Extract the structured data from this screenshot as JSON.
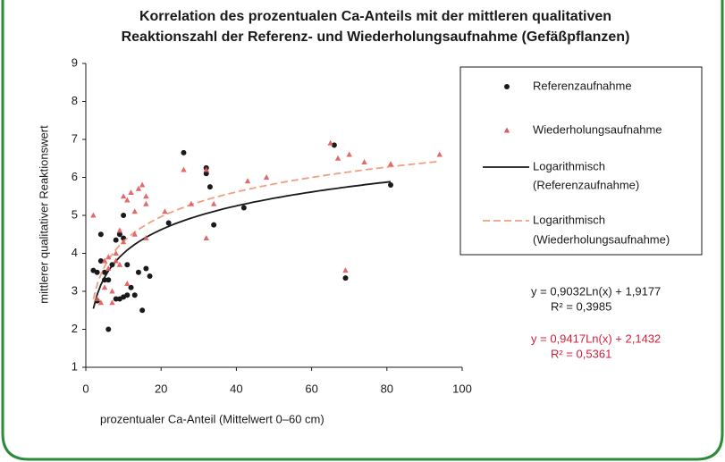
{
  "chart_data": {
    "type": "scatter",
    "title": [
      "Korrelation des prozentualen Ca-Anteils mit der mittleren qualitativen",
      "Reaktionszahl der Referenz- und Wiederholungsaufnahme (Gefäßpflanzen)"
    ],
    "xlabel": "prozentualer Ca-Anteil (Mittelwert 0–60 cm)",
    "ylabel": "mittlerer qualitativer Reaktionswert",
    "xlim": [
      0,
      100
    ],
    "xticks": [
      0,
      20,
      40,
      60,
      80,
      100
    ],
    "ylim": [
      1,
      9
    ],
    "yticks": [
      1,
      2,
      3,
      4,
      5,
      6,
      7,
      8,
      9
    ],
    "series": [
      {
        "name": "Referenzaufnahme",
        "color": "#1a1a1a",
        "x": [
          26,
          32,
          32,
          33,
          34,
          42,
          22,
          17,
          15,
          14,
          10,
          10,
          9,
          8,
          11,
          11,
          10,
          9,
          8,
          6,
          4,
          3,
          2,
          3,
          5,
          5,
          6,
          7,
          12,
          13,
          66,
          69,
          81,
          16,
          4
        ],
        "values": [
          6.65,
          6.25,
          6.1,
          5.75,
          4.75,
          5.2,
          4.8,
          3.4,
          2.5,
          3.5,
          5.0,
          4.4,
          4.5,
          4.35,
          3.7,
          2.9,
          2.85,
          2.8,
          2.8,
          2.0,
          4.5,
          3.5,
          3.55,
          2.75,
          3.3,
          3.5,
          3.3,
          3.7,
          3.1,
          2.9,
          6.85,
          3.35,
          5.8,
          3.6,
          3.8
        ],
        "trend_label": [
          "Logarithmisch",
          "(Referenzaufnahme)"
        ],
        "trend_color": "#1a1a1a",
        "trend_dash": false,
        "coef": [
          0.9032,
          1.9177
        ],
        "equation": "y = 0,9032Ln(x) + 1,9177",
        "r2": "R² = 0,3985",
        "eq_color": "#1a1a1a"
      },
      {
        "name": "Wiederholungsaufnahme",
        "color": "#e05a5a",
        "x": [
          2,
          3,
          4,
          5,
          5,
          6,
          7,
          7,
          8,
          8,
          9,
          9,
          10,
          10,
          11,
          12,
          13,
          14,
          15,
          16,
          16,
          16,
          21,
          26,
          28,
          32,
          32,
          34,
          43,
          48,
          65,
          67,
          69,
          70,
          74,
          81,
          94,
          13,
          6,
          11
        ],
        "values": [
          5.0,
          2.8,
          2.7,
          3.1,
          3.8,
          3.6,
          2.7,
          3.0,
          3.8,
          4.0,
          3.7,
          4.6,
          4.3,
          5.5,
          5.4,
          5.6,
          5.1,
          5.7,
          5.8,
          5.5,
          5.3,
          4.4,
          5.1,
          6.2,
          5.3,
          6.2,
          4.4,
          5.3,
          5.9,
          6.0,
          6.9,
          6.5,
          3.55,
          6.6,
          6.4,
          6.35,
          6.6,
          4.5,
          3.9,
          3.2
        ],
        "trend_label": [
          "Logarithmisch",
          "(Wiederholungsaufnahme)"
        ],
        "trend_color": "#f0a080",
        "trend_dash": true,
        "coef": [
          0.9417,
          2.1432
        ],
        "equation": "y = 0,9417Ln(x) + 2,1432",
        "r2": "R² = 0,5361",
        "eq_color": "#d0203c"
      }
    ]
  }
}
